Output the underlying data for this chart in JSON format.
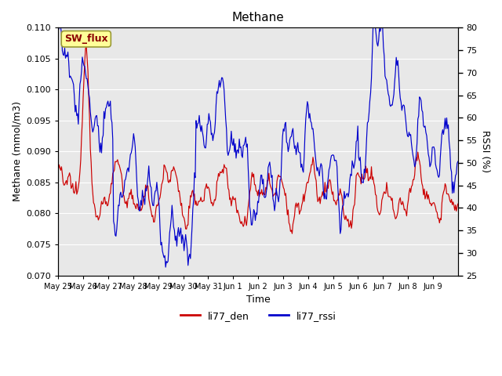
{
  "title": "Methane",
  "xlabel": "Time",
  "ylabel_left": "Methane (mmol/m3)",
  "ylabel_right": "RSSI (%)",
  "ylim_left": [
    0.07,
    0.11
  ],
  "ylim_right": [
    25,
    80
  ],
  "yticks_left": [
    0.07,
    0.075,
    0.08,
    0.085,
    0.09,
    0.095,
    0.1,
    0.105,
    0.11
  ],
  "yticks_right": [
    25,
    30,
    35,
    40,
    45,
    50,
    55,
    60,
    65,
    70,
    75,
    80
  ],
  "xtick_labels": [
    "May 25",
    "May 26",
    "May 27",
    "May 28",
    "May 29",
    "May 30",
    "May 31",
    "Jun 1",
    "Jun 2",
    "Jun 3",
    "Jun 4",
    "Jun 5",
    "Jun 6",
    "Jun 7",
    "Jun 8",
    "Jun 9"
  ],
  "fig_bg_color": "#ffffff",
  "plot_bg_color": "#e8e8e8",
  "line_red_color": "#cc0000",
  "line_blue_color": "#0000cc",
  "grid_color": "#ffffff",
  "legend_label_red": "li77_den",
  "legend_label_blue": "li77_rssi",
  "annotation_text": "SW_flux",
  "annotation_bg": "#ffff99",
  "annotation_border": "#999933",
  "title_fontsize": 11,
  "axis_label_fontsize": 9,
  "tick_fontsize": 8,
  "legend_fontsize": 9
}
